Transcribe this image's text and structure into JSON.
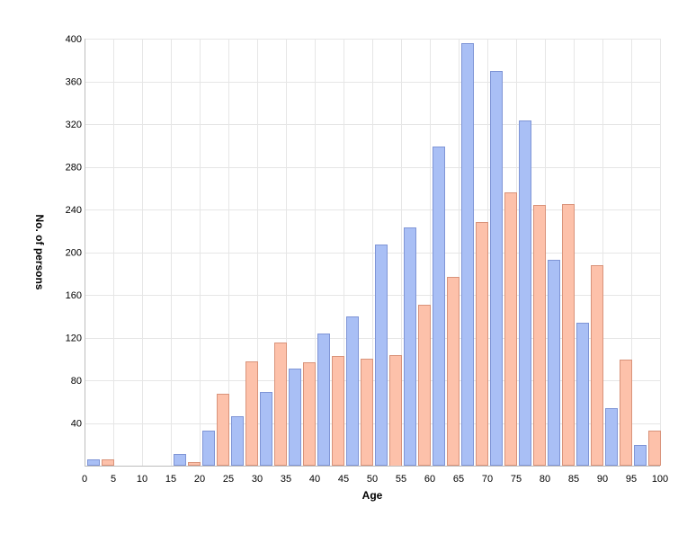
{
  "chart_data": {
    "type": "bar",
    "title": "",
    "xlabel": "Age",
    "ylabel": "No. of persons",
    "xlim": [
      0,
      100
    ],
    "ylim": [
      0,
      400
    ],
    "x_ticks": [
      0,
      5,
      10,
      15,
      20,
      25,
      30,
      35,
      40,
      45,
      50,
      55,
      60,
      65,
      70,
      75,
      80,
      85,
      90,
      95,
      100
    ],
    "y_ticks": [
      40,
      80,
      120,
      160,
      200,
      240,
      280,
      320,
      360,
      400
    ],
    "grid": true,
    "legend": "none",
    "categories": [
      "0-5",
      "5-10",
      "10-15",
      "15-20",
      "20-25",
      "25-30",
      "30-35",
      "35-40",
      "40-45",
      "45-50",
      "50-55",
      "55-60",
      "60-65",
      "65-70",
      "70-75",
      "75-80",
      "80-85",
      "85-90",
      "90-95",
      "95-100"
    ],
    "series": [
      {
        "color": "#a9bff5",
        "stroke": "#7f95d6",
        "values": [
          6,
          1,
          1,
          11,
          33,
          46,
          69,
          91,
          124,
          140,
          207,
          223,
          299,
          396,
          370,
          323,
          193,
          134,
          54,
          19
        ]
      },
      {
        "color": "#fdc1aa",
        "stroke": "#d9937a",
        "values": [
          6,
          1,
          1,
          3,
          67,
          98,
          115,
          97,
          103,
          100,
          104,
          151,
          177,
          228,
          256,
          244,
          245,
          188,
          99,
          33
        ]
      }
    ]
  }
}
